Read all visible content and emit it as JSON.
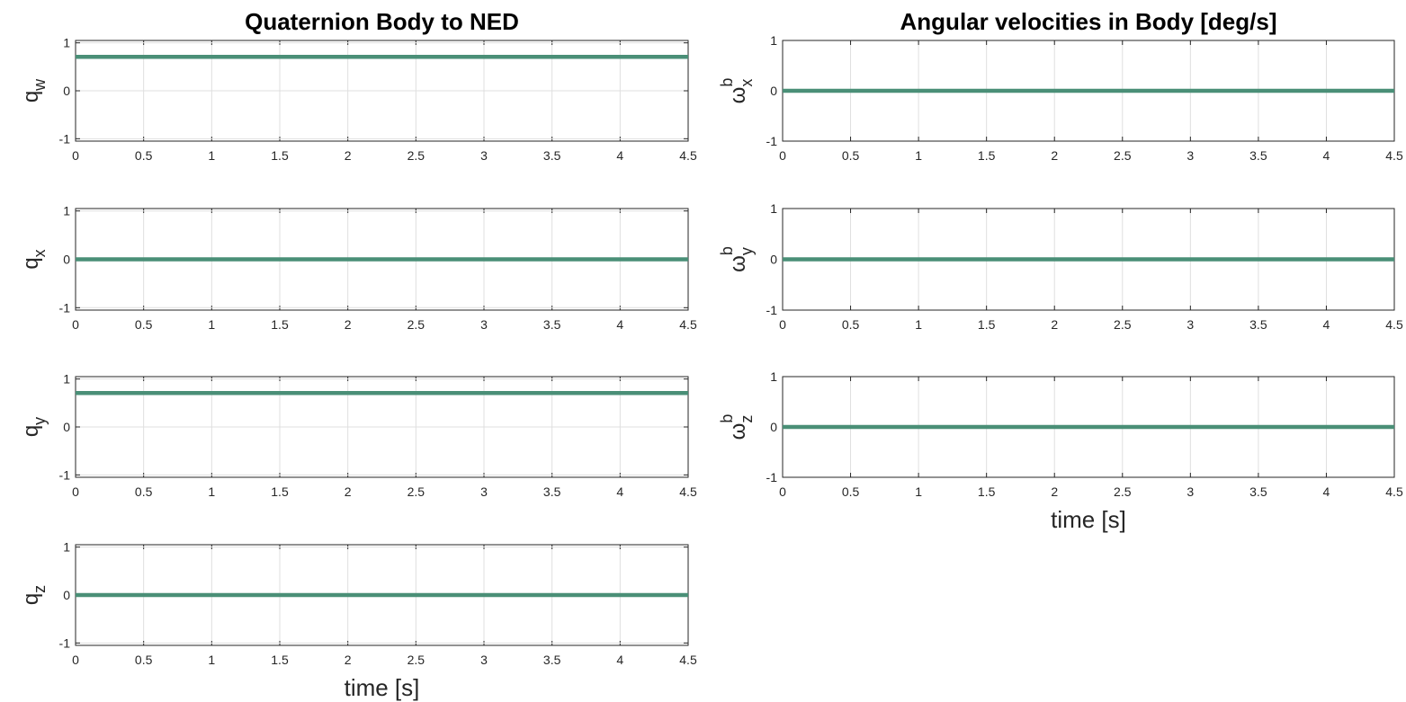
{
  "colors": {
    "series": "#4a8f77"
  },
  "chart_data": [
    {
      "type": "line",
      "title": "Quaternion Body to NED",
      "ylabel": {
        "main": "q",
        "sub": "w",
        "sup": ""
      },
      "xlabel": "",
      "xlim": [
        0,
        4.5
      ],
      "ylim": [
        -1.05,
        1.05
      ],
      "xticks": [
        "0",
        "0.5",
        "1",
        "1.5",
        "2",
        "2.5",
        "3",
        "3.5",
        "4",
        "4.5"
      ],
      "yticks": [
        "-1",
        "0",
        "1"
      ],
      "grid": true,
      "series": [
        {
          "x": [
            0,
            4.5
          ],
          "y": [
            0.7071,
            0.7071
          ]
        }
      ]
    },
    {
      "type": "line",
      "title": "Angular velocities in Body [deg/s]",
      "ylabel": {
        "main": "ω",
        "sub": "x",
        "sup": "b"
      },
      "xlabel": "",
      "xlim": [
        0,
        4.5
      ],
      "ylim": [
        -1,
        1
      ],
      "xticks": [
        "0",
        "0.5",
        "1",
        "1.5",
        "2",
        "2.5",
        "3",
        "3.5",
        "4",
        "4.5"
      ],
      "yticks": [
        "-1",
        "0",
        "1"
      ],
      "grid": true,
      "series": [
        {
          "x": [
            0,
            4.5
          ],
          "y": [
            0,
            0
          ]
        }
      ]
    },
    {
      "type": "line",
      "title": "",
      "ylabel": {
        "main": "q",
        "sub": "x",
        "sup": ""
      },
      "xlabel": "",
      "xlim": [
        0,
        4.5
      ],
      "ylim": [
        -1.05,
        1.05
      ],
      "xticks": [
        "0",
        "0.5",
        "1",
        "1.5",
        "2",
        "2.5",
        "3",
        "3.5",
        "4",
        "4.5"
      ],
      "yticks": [
        "-1",
        "0",
        "1"
      ],
      "grid": true,
      "series": [
        {
          "x": [
            0,
            4.5
          ],
          "y": [
            0,
            0
          ]
        }
      ]
    },
    {
      "type": "line",
      "title": "",
      "ylabel": {
        "main": "ω",
        "sub": "y",
        "sup": "b"
      },
      "xlabel": "",
      "xlim": [
        0,
        4.5
      ],
      "ylim": [
        -1,
        1
      ],
      "xticks": [
        "0",
        "0.5",
        "1",
        "1.5",
        "2",
        "2.5",
        "3",
        "3.5",
        "4",
        "4.5"
      ],
      "yticks": [
        "-1",
        "0",
        "1"
      ],
      "grid": true,
      "series": [
        {
          "x": [
            0,
            4.5
          ],
          "y": [
            0,
            0
          ]
        }
      ]
    },
    {
      "type": "line",
      "title": "",
      "ylabel": {
        "main": "q",
        "sub": "y",
        "sup": ""
      },
      "xlabel": "",
      "xlim": [
        0,
        4.5
      ],
      "ylim": [
        -1.05,
        1.05
      ],
      "xticks": [
        "0",
        "0.5",
        "1",
        "1.5",
        "2",
        "2.5",
        "3",
        "3.5",
        "4",
        "4.5"
      ],
      "yticks": [
        "-1",
        "0",
        "1"
      ],
      "grid": true,
      "series": [
        {
          "x": [
            0,
            4.5
          ],
          "y": [
            0.7071,
            0.7071
          ]
        }
      ]
    },
    {
      "type": "line",
      "title": "",
      "ylabel": {
        "main": "ω",
        "sub": "z",
        "sup": "b"
      },
      "xlabel": "time [s]",
      "xlim": [
        0,
        4.5
      ],
      "ylim": [
        -1,
        1
      ],
      "xticks": [
        "0",
        "0.5",
        "1",
        "1.5",
        "2",
        "2.5",
        "3",
        "3.5",
        "4",
        "4.5"
      ],
      "yticks": [
        "-1",
        "0",
        "1"
      ],
      "grid": true,
      "series": [
        {
          "x": [
            0,
            4.5
          ],
          "y": [
            0,
            0
          ]
        }
      ]
    },
    {
      "type": "line",
      "title": "",
      "ylabel": {
        "main": "q",
        "sub": "z",
        "sup": ""
      },
      "xlabel": "time [s]",
      "xlim": [
        0,
        4.5
      ],
      "ylim": [
        -1.05,
        1.05
      ],
      "xticks": [
        "0",
        "0.5",
        "1",
        "1.5",
        "2",
        "2.5",
        "3",
        "3.5",
        "4",
        "4.5"
      ],
      "yticks": [
        "-1",
        "0",
        "1"
      ],
      "grid": true,
      "series": [
        {
          "x": [
            0,
            4.5
          ],
          "y": [
            0,
            0
          ]
        }
      ]
    }
  ]
}
